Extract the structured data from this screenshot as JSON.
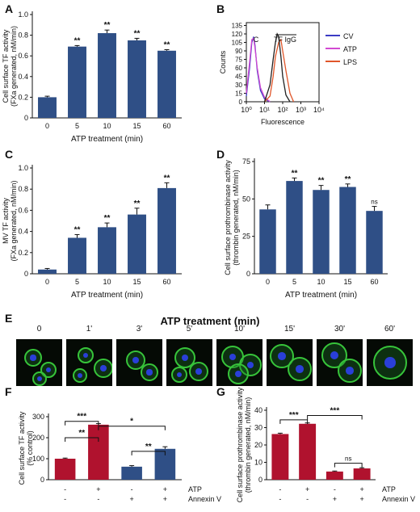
{
  "panels": {
    "A": "A",
    "B": "B",
    "C": "C",
    "D": "D",
    "E": "E",
    "F": "F",
    "G": "G"
  },
  "micro": {
    "title": "ATP treatment (min)",
    "timepoints": [
      "0",
      "1'",
      "3'",
      "5'",
      "10'",
      "15'",
      "30'",
      "60'"
    ]
  },
  "colors": {
    "blue_bar": "#2f4f86",
    "red_bar": "#b0122e",
    "cv": "#3b3bc4",
    "atp": "#d24ad2",
    "lps": "#e0562a"
  },
  "chart_data": [
    {
      "panel": "A",
      "type": "bar",
      "categories": [
        "0",
        "5",
        "10",
        "15",
        "60"
      ],
      "values": [
        0.2,
        0.69,
        0.82,
        0.75,
        0.65
      ],
      "errors": [
        0.01,
        0.01,
        0.03,
        0.02,
        0.01
      ],
      "annotations": [
        "",
        "**",
        "**",
        "**",
        "**"
      ],
      "xlabel": "ATP treatment (min)",
      "ylabel": "Cell surface TF activity",
      "ylabel2": "(FXa generated, nM/min)",
      "ylim": [
        0,
        1.0
      ],
      "yticks": [
        "0",
        "0.2",
        "0.4",
        "0.6",
        "0.8",
        "1.0"
      ]
    },
    {
      "panel": "B",
      "type": "line",
      "xlabel": "Fluorescence",
      "ylabel": "Counts",
      "xscale": "log",
      "xticks": [
        "10⁰",
        "10¹",
        "10²",
        "10³",
        "10⁴"
      ],
      "ylim": [
        0,
        140
      ],
      "yticks": [
        "0",
        "15",
        "30",
        "45",
        "60",
        "75",
        "90",
        "105",
        "120",
        "135"
      ],
      "legend": [
        "CV",
        "ATP",
        "LPS"
      ],
      "legend_position": "right",
      "annotations": [
        "C",
        "TF IgG"
      ],
      "series": [
        {
          "name": "CV",
          "x": [
            1.0,
            1.5,
            2.0,
            2.5,
            3.0,
            4.0,
            6.0,
            10.0,
            20.0
          ],
          "y": [
            10,
            60,
            105,
            115,
            100,
            55,
            20,
            5,
            0
          ]
        },
        {
          "name": "ATP",
          "x": [
            1.0,
            1.5,
            2.0,
            2.5,
            3.0,
            4.0,
            6.0,
            10.0,
            20.0
          ],
          "y": [
            15,
            70,
            110,
            112,
            95,
            60,
            25,
            8,
            0
          ]
        },
        {
          "name": "LPS",
          "x": [
            10,
            20,
            30,
            40,
            60,
            80,
            100,
            150,
            250,
            400
          ],
          "y": [
            0,
            10,
            45,
            80,
            105,
            110,
            90,
            55,
            15,
            0
          ]
        },
        {
          "name": "",
          "x": [
            10,
            20,
            30,
            40,
            50,
            60,
            80,
            100,
            150,
            250
          ],
          "y": [
            0,
            30,
            75,
            105,
            120,
            115,
            80,
            45,
            12,
            0
          ]
        }
      ]
    },
    {
      "panel": "C",
      "type": "bar",
      "categories": [
        "0",
        "5",
        "10",
        "15",
        "60"
      ],
      "values": [
        0.04,
        0.34,
        0.44,
        0.56,
        0.81
      ],
      "errors": [
        0.01,
        0.03,
        0.04,
        0.06,
        0.05
      ],
      "annotations": [
        "",
        "**",
        "**",
        "**",
        "**"
      ],
      "xlabel": "ATP treatment (min)",
      "ylabel": "MV TF activity",
      "ylabel2": "(FXa generated, nM/min)",
      "ylim": [
        0,
        1.0
      ],
      "yticks": [
        "0",
        "0.2",
        "0.4",
        "0.6",
        "0.8",
        "1.0"
      ]
    },
    {
      "panel": "D",
      "type": "bar",
      "categories": [
        "0",
        "5",
        "10",
        "15",
        "60"
      ],
      "values": [
        43,
        62,
        56,
        58,
        42
      ],
      "errors": [
        3,
        2,
        3,
        2,
        3
      ],
      "annotations": [
        "",
        "**",
        "**",
        "**",
        "ns"
      ],
      "xlabel": "ATP treatment (min)",
      "ylabel": "Cell surface prothrombinase activity",
      "ylabel2": "(thrombin generated, nM/min)",
      "ylim": [
        0,
        75
      ],
      "yticks": [
        "0",
        "25",
        "50",
        "75"
      ]
    },
    {
      "panel": "F",
      "type": "bar",
      "categories": [
        "1",
        "2",
        "3",
        "4"
      ],
      "values": [
        100,
        262,
        62,
        147
      ],
      "errors": [
        3,
        5,
        5,
        10
      ],
      "bar_colors": [
        "red",
        "red",
        "blue",
        "blue"
      ],
      "ylabel": "Cell surface TF activity",
      "ylabel2": "(% control)",
      "ylim": [
        0,
        300
      ],
      "yticks": [
        "0",
        "100",
        "200",
        "300"
      ],
      "condition_rows": [
        {
          "label": "ATP",
          "marks": [
            "-",
            "+",
            "-",
            "+"
          ]
        },
        {
          "label": "Annexin V",
          "marks": [
            "-",
            "-",
            "+",
            "+"
          ]
        }
      ],
      "brackets": [
        {
          "from": 0,
          "to": 1,
          "level": 200,
          "text": "**"
        },
        {
          "from": 0,
          "to": 1,
          "level": 278,
          "text": "***"
        },
        {
          "from": 1,
          "to": 3,
          "level": 255,
          "text": "*"
        },
        {
          "from": 2,
          "to": 3,
          "level": 135,
          "text": "**"
        }
      ]
    },
    {
      "panel": "G",
      "type": "bar",
      "categories": [
        "1",
        "2",
        "3",
        "4"
      ],
      "values": [
        26.3,
        32.2,
        4.7,
        6.5
      ],
      "errors": [
        0.5,
        0.5,
        0.3,
        0.4
      ],
      "bar_colors": [
        "red",
        "red",
        "red",
        "red"
      ],
      "ylabel": "Cell surface prothrombinase activity",
      "ylabel2": "(thrombin generated, nM/min)",
      "ylim": [
        0,
        40
      ],
      "yticks": [
        "0",
        "10",
        "20",
        "30",
        "40"
      ],
      "condition_rows": [
        {
          "label": "ATP",
          "marks": [
            "-",
            "+",
            "-",
            "+"
          ]
        },
        {
          "label": "Annexin V",
          "marks": [
            "-",
            "-",
            "+",
            "+"
          ]
        }
      ],
      "brackets": [
        {
          "from": 0,
          "to": 1,
          "level": 34.5,
          "text": "***"
        },
        {
          "from": 1,
          "to": 3,
          "level": 37.0,
          "text": "***"
        },
        {
          "from": 2,
          "to": 3,
          "level": 9.5,
          "text": "ns"
        }
      ]
    }
  ]
}
